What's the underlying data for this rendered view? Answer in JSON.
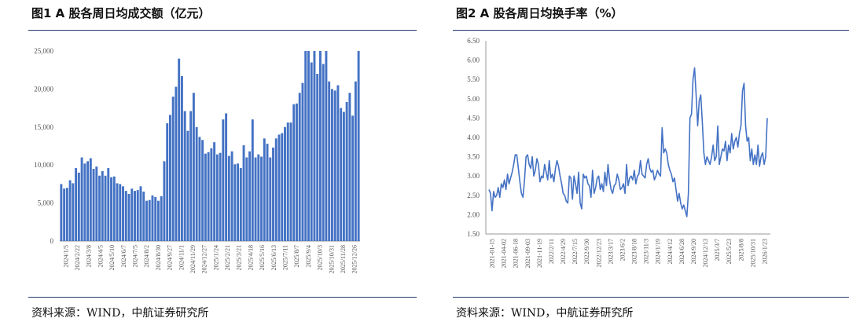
{
  "left": {
    "title": "图1  A 股各周日均成交额（亿元）",
    "source": "资料来源：WIND，中航证券研究所"
  },
  "right": {
    "title": "图2  A 股各周日均换手率（%）",
    "source": "资料来源：WIND，中航证券研究所"
  },
  "colors": {
    "bar": "#4472c4",
    "line": "#4472c4",
    "rule": "#1f3b6f",
    "axis": "#999999"
  },
  "chart_data": [
    {
      "type": "bar",
      "title": "A 股各周日均成交额（亿元）",
      "ylim": [
        0,
        25000
      ],
      "y_ticks": [
        "0",
        "5,000",
        "10,000",
        "15,000",
        "20,000",
        "25,000"
      ],
      "x_tick_labels": [
        "2024/1/5",
        "2024/2/22",
        "2024/3/8",
        "2024/4/5",
        "2024/5/10",
        "2024/6/7",
        "2024/7/5",
        "2024/8/2",
        "2024/8/30",
        "2024/9/27",
        "2024/11/1",
        "2024/11/29",
        "2024/12/27",
        "2025/1/24",
        "2025/2/21",
        "2025/3/21",
        "2025/4/18",
        "2025/5/16",
        "2025/6/13",
        "2025/7/11",
        "2025/8/7",
        "2025/9/4",
        "2025/10/3",
        "2025/10/31",
        "2025/11/28",
        "2025/12/26"
      ],
      "values": [
        7500,
        6900,
        7000,
        8000,
        7600,
        9600,
        9000,
        11000,
        10200,
        10500,
        10900,
        9500,
        9800,
        8600,
        9200,
        8600,
        9600,
        8400,
        8500,
        7600,
        7500,
        7200,
        6600,
        6200,
        6900,
        6600,
        6700,
        7200,
        6500,
        5300,
        5400,
        6000,
        5800,
        5300,
        5900,
        10500,
        15500,
        16600,
        19000,
        20300,
        24000,
        21700,
        17100,
        14500,
        17100,
        19500,
        15000,
        13700,
        13300,
        11500,
        11700,
        12200,
        13000,
        11400,
        11600,
        16000,
        16800,
        11200,
        11800,
        10100,
        10200,
        9600,
        12600,
        11000,
        11800,
        16000,
        11000,
        11400,
        11100,
        13500,
        12800,
        11000,
        12300,
        13500,
        14000,
        14200,
        15000,
        15600,
        15600,
        18000,
        18100,
        19500,
        20800,
        25000,
        25000,
        23500,
        25000,
        22000,
        25000,
        23300,
        25000,
        21000,
        20000,
        19800,
        20500,
        17500,
        17000,
        18300,
        19500,
        16500,
        21000,
        25000
      ]
    },
    {
      "type": "line",
      "title": "A 股各周日均换手率（%）",
      "ylim": [
        1.5,
        6.5
      ],
      "y_ticks": [
        "1.50",
        "2.00",
        "2.50",
        "3.00",
        "3.50",
        "4.00",
        "4.50",
        "5.00",
        "5.50",
        "6.00",
        "6.50"
      ],
      "x_tick_labels": [
        "2021-01-15",
        "2021-04-02",
        "2021-06-18",
        "2021-09-03",
        "2021-11-19",
        "2022/2/11",
        "2022/4/29",
        "2022/7/15",
        "2022/9/30",
        "2022/12/23",
        "2023/3/17",
        "2023/6/2",
        "2023/8/18",
        "2023/11/3",
        "2024/1/19",
        "2024/4/12",
        "2024/6/28",
        "2024/9/20",
        "2024/12/13",
        "2025/3/7",
        "2025/5/23",
        "2025/8/8",
        "2025/10/31",
        "2026/1/23"
      ],
      "values": [
        2.65,
        2.55,
        2.1,
        2.6,
        2.45,
        2.5,
        2.7,
        2.45,
        2.8,
        2.7,
        2.9,
        2.65,
        3.05,
        2.8,
        2.95,
        3.1,
        3.3,
        3.55,
        3.55,
        3.2,
        2.85,
        2.55,
        2.45,
        2.9,
        3.5,
        3.55,
        3.3,
        3.2,
        3.5,
        3.0,
        3.15,
        3.45,
        3.3,
        2.85,
        3.0,
        2.95,
        3.3,
        3.1,
        2.9,
        3.4,
        2.95,
        3.05,
        2.85,
        3.2,
        3.4,
        3.25,
        3.0,
        2.8,
        2.55,
        2.5,
        2.35,
        2.3,
        3.0,
        2.95,
        2.4,
        3.0,
        2.8,
        2.55,
        3.1,
        2.3,
        2.15,
        3.05,
        2.95,
        3.0,
        2.8,
        2.75,
        2.45,
        3.15,
        2.55,
        2.7,
        2.95,
        3.0,
        2.65,
        2.8,
        2.6,
        3.1,
        2.75,
        3.3,
        2.9,
        2.65,
        2.55,
        2.75,
        2.8,
        3.05,
        2.9,
        2.65,
        2.7,
        2.8,
        2.55,
        3.3,
        2.75,
        2.95,
        3.0,
        2.9,
        3.15,
        2.8,
        3.0,
        3.05,
        3.4,
        3.05,
        3.0,
        2.95,
        3.3,
        3.45,
        3.2,
        3.1,
        3.15,
        2.9,
        3.0,
        3.15,
        3.05,
        3.0,
        4.25,
        3.6,
        3.7,
        3.6,
        3.3,
        3.15,
        3.05,
        2.85,
        2.95,
        2.65,
        2.35,
        2.55,
        2.3,
        2.15,
        2.25,
        2.1,
        1.95,
        2.55,
        4.5,
        4.6,
        5.5,
        5.8,
        5.1,
        4.3,
        4.95,
        5.1,
        4.4,
        3.6,
        3.3,
        3.5,
        3.4,
        3.3,
        3.5,
        3.8,
        3.4,
        3.5,
        4.3,
        3.3,
        3.5,
        3.7,
        3.65,
        3.9,
        3.4,
        3.8,
        3.6,
        4.1,
        3.7,
        3.9,
        4.0,
        3.75,
        4.1,
        4.3,
        5.2,
        5.4,
        4.3,
        3.9,
        4.0,
        3.4,
        3.7,
        3.3,
        3.55,
        3.3,
        3.8,
        3.25,
        3.5,
        3.6,
        3.3,
        3.5,
        4.5
      ]
    }
  ]
}
